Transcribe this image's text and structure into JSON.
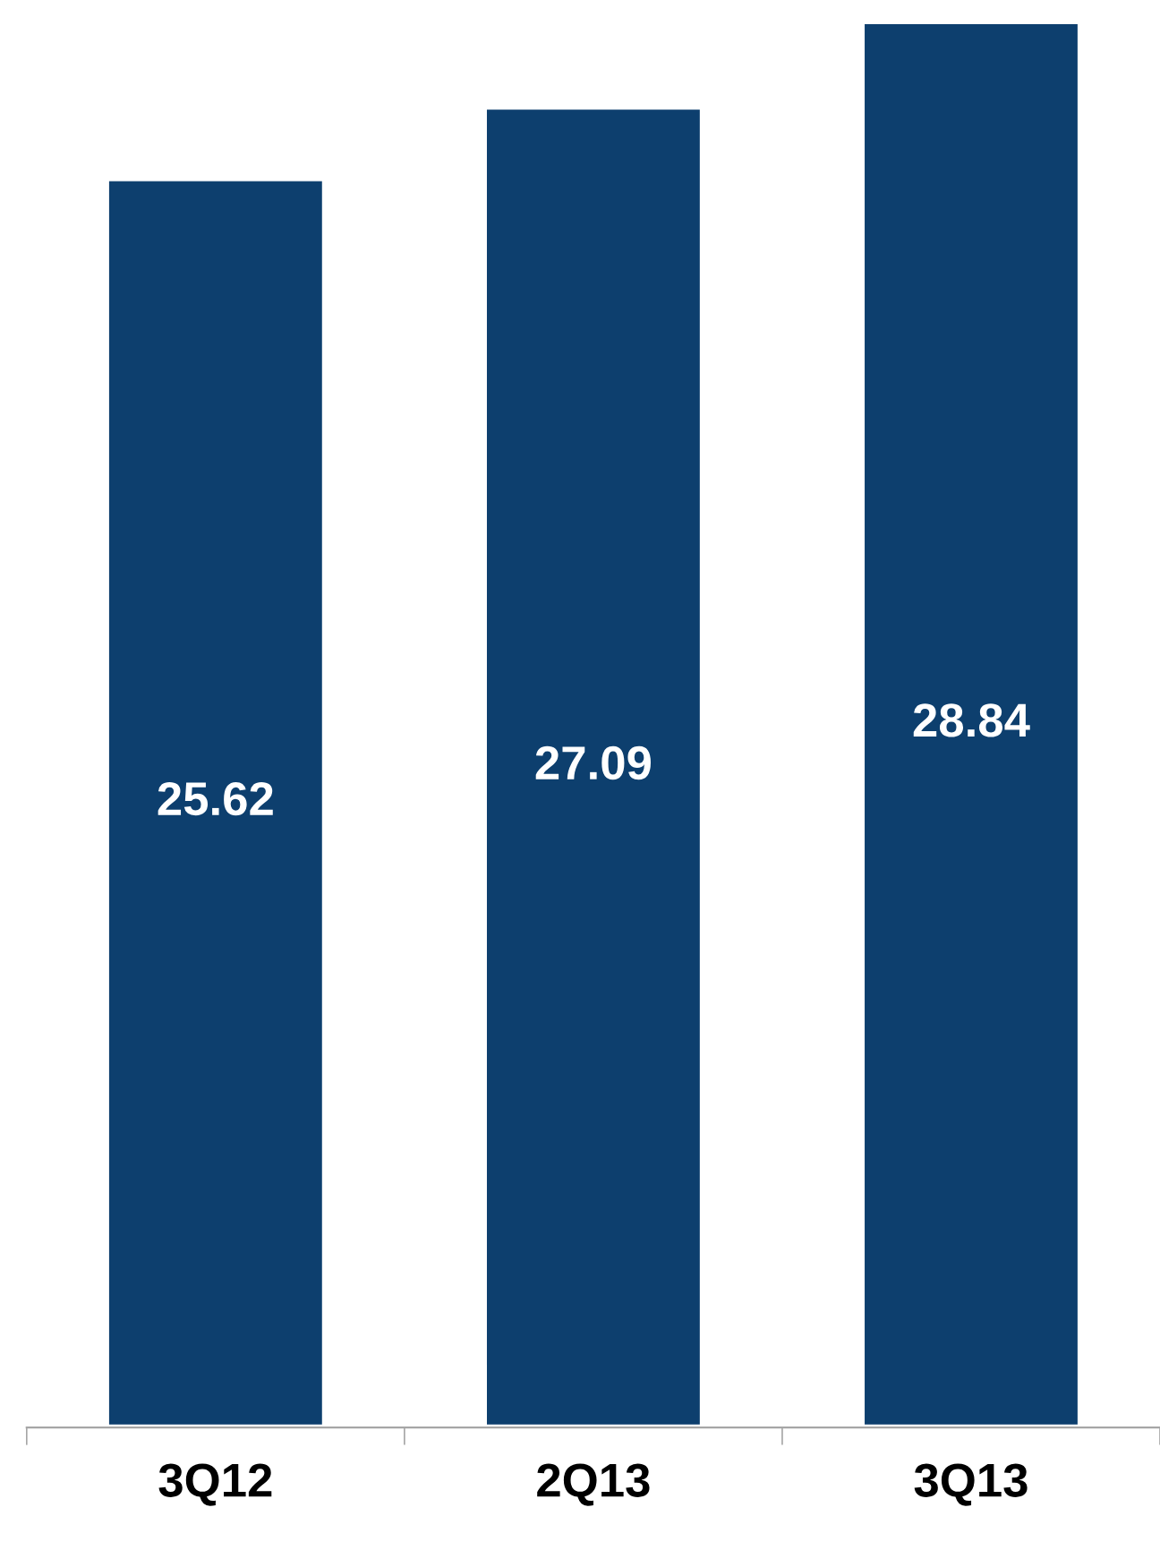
{
  "chart_data": {
    "type": "bar",
    "categories": [
      "3Q12",
      "2Q13",
      "3Q13"
    ],
    "values": [
      25.62,
      27.09,
      28.84
    ],
    "color": "#0d3f6e",
    "data_labels": true,
    "grid": false,
    "legend": false
  }
}
